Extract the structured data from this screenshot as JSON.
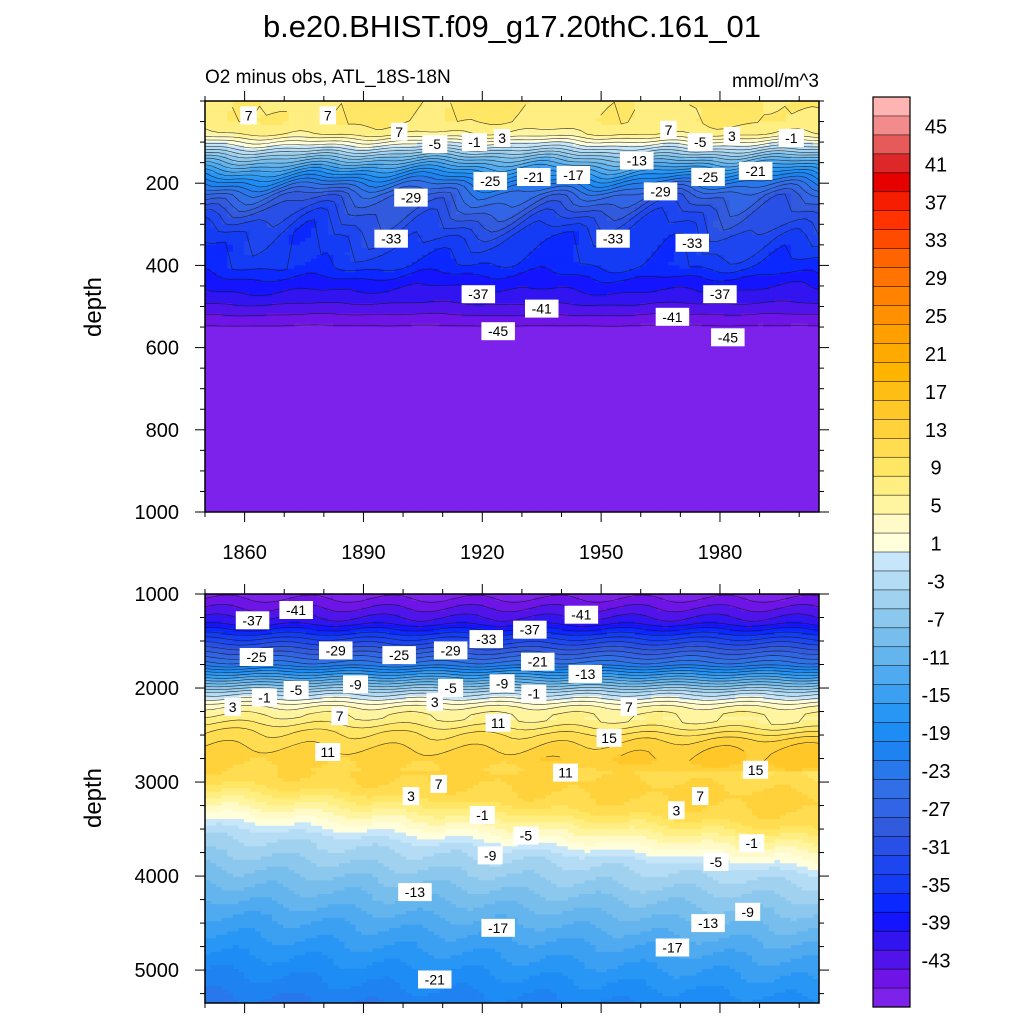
{
  "chart_data": [
    {
      "type": "contour",
      "panel": "top",
      "title": "b.e20.BHIST.f09_g17.20thC.161_01",
      "subtitle_left": "O2 minus obs, ATL_18S-18N",
      "subtitle_right": "mmol/m^3",
      "ylabel": "depth",
      "x_range": [
        1850,
        2005
      ],
      "y_range": [
        0,
        1000
      ],
      "y_inverted": true,
      "x_ticks": [
        "1860",
        "1890",
        "1920",
        "1950",
        "1980"
      ],
      "y_ticks": [
        "200",
        "400",
        "600",
        "800",
        "1000"
      ],
      "profile": [
        {
          "depth": 0,
          "value": 9
        },
        {
          "depth": 50,
          "value": 9
        },
        {
          "depth": 80,
          "value": 7
        },
        {
          "depth": 110,
          "value": 0
        },
        {
          "depth": 140,
          "value": -8
        },
        {
          "depth": 170,
          "value": -15
        },
        {
          "depth": 200,
          "value": -21
        },
        {
          "depth": 230,
          "value": -26
        },
        {
          "depth": 280,
          "value": -30
        },
        {
          "depth": 330,
          "value": -33
        },
        {
          "depth": 400,
          "value": -35
        },
        {
          "depth": 440,
          "value": -38
        },
        {
          "depth": 480,
          "value": -40
        },
        {
          "depth": 520,
          "value": -43
        },
        {
          "depth": 560,
          "value": -46
        },
        {
          "depth": 1000,
          "value": -46
        }
      ],
      "labels": [
        {
          "text": "7",
          "x": 1861,
          "y": 35
        },
        {
          "text": "7",
          "x": 1881,
          "y": 35
        },
        {
          "text": "7",
          "x": 1899,
          "y": 75
        },
        {
          "text": "-5",
          "x": 1908,
          "y": 105
        },
        {
          "text": "-1",
          "x": 1918,
          "y": 100
        },
        {
          "text": "3",
          "x": 1925,
          "y": 90
        },
        {
          "text": "7",
          "x": 1967,
          "y": 70
        },
        {
          "text": "-5",
          "x": 1975,
          "y": 100
        },
        {
          "text": "3",
          "x": 1983,
          "y": 85
        },
        {
          "text": "-1",
          "x": 1998,
          "y": 90
        },
        {
          "text": "-13",
          "x": 1959,
          "y": 145
        },
        {
          "text": "-21",
          "x": 1933,
          "y": 185
        },
        {
          "text": "-17",
          "x": 1943,
          "y": 180
        },
        {
          "text": "-25",
          "x": 1922,
          "y": 195
        },
        {
          "text": "-25",
          "x": 1977,
          "y": 185
        },
        {
          "text": "-21",
          "x": 1989,
          "y": 170
        },
        {
          "text": "-29",
          "x": 1902,
          "y": 235
        },
        {
          "text": "-29",
          "x": 1965,
          "y": 220
        },
        {
          "text": "-33",
          "x": 1897,
          "y": 335
        },
        {
          "text": "-33",
          "x": 1953,
          "y": 335
        },
        {
          "text": "-33",
          "x": 1973,
          "y": 345
        },
        {
          "text": "-37",
          "x": 1919,
          "y": 470
        },
        {
          "text": "-37",
          "x": 1980,
          "y": 470
        },
        {
          "text": "-41",
          "x": 1935,
          "y": 505
        },
        {
          "text": "-41",
          "x": 1968,
          "y": 525
        },
        {
          "text": "-45",
          "x": 1924,
          "y": 560
        },
        {
          "text": "-45",
          "x": 1982,
          "y": 575
        }
      ]
    },
    {
      "type": "contour",
      "panel": "bottom",
      "ylabel": "depth",
      "x_range": [
        1850,
        2005
      ],
      "y_range": [
        1000,
        5350
      ],
      "y_inverted": true,
      "y_ticks": [
        "1000",
        "2000",
        "3000",
        "4000",
        "5000"
      ],
      "labels": [
        {
          "text": "-37",
          "x": 1862,
          "y": 1280
        },
        {
          "text": "-41",
          "x": 1873,
          "y": 1170
        },
        {
          "text": "-41",
          "x": 1945,
          "y": 1220
        },
        {
          "text": "-25",
          "x": 1863,
          "y": 1670
        },
        {
          "text": "-29",
          "x": 1883,
          "y": 1600
        },
        {
          "text": "-25",
          "x": 1899,
          "y": 1650
        },
        {
          "text": "-29",
          "x": 1912,
          "y": 1600
        },
        {
          "text": "-33",
          "x": 1921,
          "y": 1480
        },
        {
          "text": "-37",
          "x": 1932,
          "y": 1380
        },
        {
          "text": "-21",
          "x": 1934,
          "y": 1720
        },
        {
          "text": "-13",
          "x": 1946,
          "y": 1850
        },
        {
          "text": "-9",
          "x": 1888,
          "y": 1960
        },
        {
          "text": "-5",
          "x": 1912,
          "y": 2000
        },
        {
          "text": "-9",
          "x": 1925,
          "y": 1950
        },
        {
          "text": "-1",
          "x": 1933,
          "y": 2060
        },
        {
          "text": "-5",
          "x": 1873,
          "y": 2020
        },
        {
          "text": "-1",
          "x": 1865,
          "y": 2100
        },
        {
          "text": "3",
          "x": 1857,
          "y": 2200
        },
        {
          "text": "3",
          "x": 1908,
          "y": 2150
        },
        {
          "text": "7",
          "x": 1884,
          "y": 2300
        },
        {
          "text": "7",
          "x": 1957,
          "y": 2200
        },
        {
          "text": "11",
          "x": 1924,
          "y": 2370
        },
        {
          "text": "15",
          "x": 1952,
          "y": 2530
        },
        {
          "text": "11",
          "x": 1881,
          "y": 2680
        },
        {
          "text": "11",
          "x": 1941,
          "y": 2900
        },
        {
          "text": "15",
          "x": 1989,
          "y": 2870
        },
        {
          "text": "7",
          "x": 1909,
          "y": 3020
        },
        {
          "text": "3",
          "x": 1902,
          "y": 3150
        },
        {
          "text": "7",
          "x": 1975,
          "y": 3150
        },
        {
          "text": "3",
          "x": 1969,
          "y": 3300
        },
        {
          "text": "-1",
          "x": 1920,
          "y": 3350
        },
        {
          "text": "-5",
          "x": 1931,
          "y": 3570
        },
        {
          "text": "-1",
          "x": 1988,
          "y": 3650
        },
        {
          "text": "-9",
          "x": 1922,
          "y": 3780
        },
        {
          "text": "-5",
          "x": 1979,
          "y": 3850
        },
        {
          "text": "-13",
          "x": 1903,
          "y": 4170
        },
        {
          "text": "-9",
          "x": 1987,
          "y": 4380
        },
        {
          "text": "-13",
          "x": 1977,
          "y": 4500
        },
        {
          "text": "-17",
          "x": 1924,
          "y": 4550
        },
        {
          "text": "-17",
          "x": 1968,
          "y": 4760
        },
        {
          "text": "-21",
          "x": 1908,
          "y": 5100
        }
      ]
    }
  ],
  "colorbar": {
    "labels": [
      "45",
      "41",
      "37",
      "33",
      "29",
      "25",
      "21",
      "17",
      "13",
      "9",
      "5",
      "1",
      "-3",
      "-7",
      "-11",
      "-15",
      "-19",
      "-23",
      "-27",
      "-31",
      "-35",
      "-39",
      "-43"
    ],
    "levels_min": -47,
    "levels_max": 47,
    "level_step": 2,
    "colors_top_to_bottom": [
      "#ffb4b4",
      "#f28c8c",
      "#e65a5a",
      "#dc2828",
      "#e60000",
      "#f51e00",
      "#ff3200",
      "#ff4b00",
      "#ff6400",
      "#ff7300",
      "#ff8200",
      "#ff9100",
      "#ffa000",
      "#ffaa00",
      "#ffb400",
      "#ffbe14",
      "#ffc828",
      "#ffd23c",
      "#ffdc50",
      "#ffe664",
      "#ffee82",
      "#fff5a0",
      "#fffac8",
      "#ffffdc",
      "#c8e6fa",
      "#b4dcf5",
      "#a0d2f0",
      "#8cc8ee",
      "#78beec",
      "#64b4ee",
      "#50aaf0",
      "#3ca0f2",
      "#2896f5",
      "#1e8cf5",
      "#1e82f0",
      "#2878eb",
      "#326ee6",
      "#3264e6",
      "#325adc",
      "#2850e6",
      "#1e46f0",
      "#143cf5",
      "#0a28ff",
      "#1414ff",
      "#3214f0",
      "#5014eb",
      "#6e14e6",
      "#7d22eb"
    ]
  }
}
